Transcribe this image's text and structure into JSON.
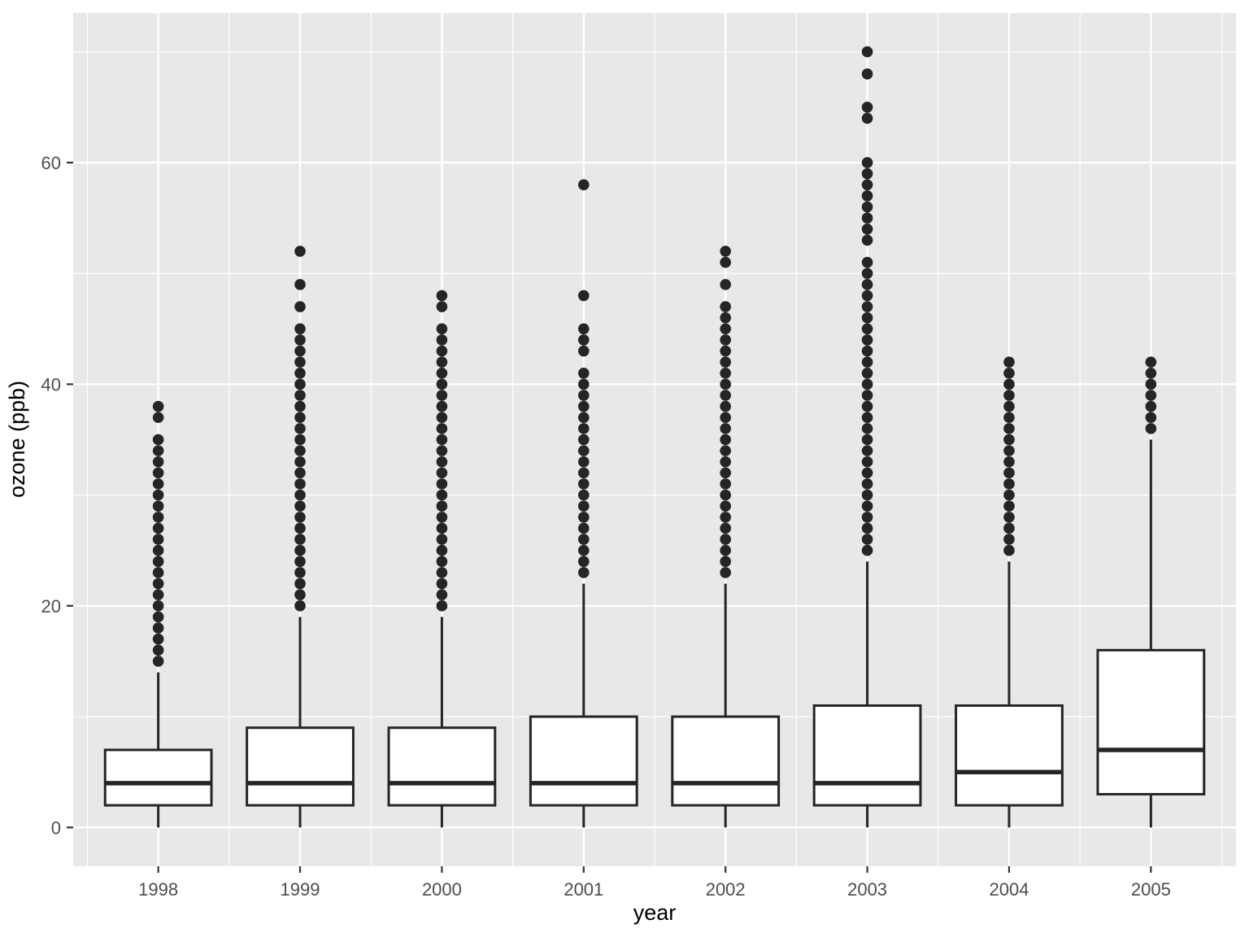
{
  "chart_data": {
    "type": "boxplot",
    "title": "",
    "xlabel": "year",
    "ylabel": "ozone (ppb)",
    "x_tick_labels": [
      "1998",
      "1999",
      "2000",
      "2001",
      "2002",
      "2003",
      "2004",
      "2005"
    ],
    "y_tick_labels": [
      "0",
      "20",
      "40",
      "60"
    ],
    "y_major_breaks": [
      0,
      20,
      40,
      60
    ],
    "y_minor_breaks": [
      10,
      30,
      50,
      70
    ],
    "ylim": [
      -3.5,
      73.5
    ],
    "grid": "on",
    "legend_position": "none",
    "series": [
      {
        "category": "1998",
        "whisker_low": 0,
        "q1": 2,
        "median": 4,
        "q3": 7,
        "whisker_high": 14,
        "outliers": [
          15,
          16,
          17,
          18,
          19,
          20,
          21,
          22,
          23,
          24,
          25,
          26,
          27,
          28,
          29,
          30,
          31,
          32,
          33,
          34,
          35,
          37,
          38
        ]
      },
      {
        "category": "1999",
        "whisker_low": 0,
        "q1": 2,
        "median": 4,
        "q3": 9,
        "whisker_high": 19,
        "outliers": [
          20,
          21,
          22,
          23,
          24,
          25,
          26,
          27,
          28,
          29,
          30,
          31,
          32,
          33,
          34,
          35,
          36,
          37,
          38,
          39,
          40,
          41,
          42,
          43,
          44,
          45,
          47,
          49,
          52
        ]
      },
      {
        "category": "2000",
        "whisker_low": 0,
        "q1": 2,
        "median": 4,
        "q3": 9,
        "whisker_high": 19,
        "outliers": [
          20,
          21,
          22,
          23,
          24,
          25,
          26,
          27,
          28,
          29,
          30,
          31,
          32,
          33,
          34,
          35,
          36,
          37,
          38,
          39,
          40,
          41,
          42,
          43,
          44,
          45,
          47,
          48
        ]
      },
      {
        "category": "2001",
        "whisker_low": 0,
        "q1": 2,
        "median": 4,
        "q3": 10,
        "whisker_high": 22,
        "outliers": [
          23,
          24,
          25,
          26,
          27,
          28,
          29,
          30,
          31,
          32,
          33,
          34,
          35,
          36,
          37,
          38,
          39,
          40,
          41,
          43,
          44,
          45,
          48,
          58
        ]
      },
      {
        "category": "2002",
        "whisker_low": 0,
        "q1": 2,
        "median": 4,
        "q3": 10,
        "whisker_high": 22,
        "outliers": [
          23,
          24,
          25,
          26,
          27,
          28,
          29,
          30,
          31,
          32,
          33,
          34,
          35,
          36,
          37,
          38,
          39,
          40,
          41,
          42,
          43,
          44,
          45,
          46,
          47,
          49,
          51,
          52
        ]
      },
      {
        "category": "2003",
        "whisker_low": 0,
        "q1": 2,
        "median": 4,
        "q3": 11,
        "whisker_high": 24,
        "outliers": [
          25,
          26,
          27,
          28,
          29,
          30,
          31,
          32,
          33,
          34,
          35,
          36,
          37,
          38,
          39,
          40,
          41,
          42,
          43,
          44,
          45,
          46,
          47,
          48,
          49,
          50,
          51,
          53,
          54,
          55,
          56,
          57,
          58,
          59,
          60,
          64,
          65,
          68,
          70
        ]
      },
      {
        "category": "2004",
        "whisker_low": 0,
        "q1": 2,
        "median": 5,
        "q3": 11,
        "whisker_high": 24,
        "outliers": [
          25,
          26,
          27,
          28,
          29,
          30,
          31,
          32,
          33,
          34,
          35,
          36,
          37,
          38,
          39,
          40,
          41,
          42
        ]
      },
      {
        "category": "2005",
        "whisker_low": 0,
        "q1": 3,
        "median": 7,
        "q3": 16,
        "whisker_high": 35,
        "outliers": [
          36,
          37,
          38,
          39,
          40,
          41,
          42
        ]
      }
    ],
    "colors": {
      "panel_bg": "#E8E8E8",
      "grid": "#FFFFFF",
      "box_fill": "#FFFFFF",
      "line": "#252525",
      "tick_mark": "#333333",
      "tick_text": "#4D4D4D",
      "axis_title": "#000000"
    }
  }
}
